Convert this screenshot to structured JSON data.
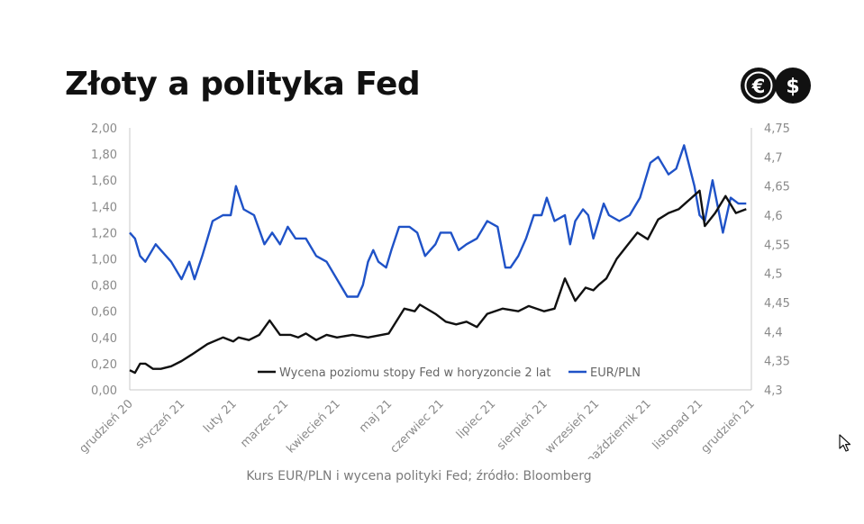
{
  "title": "Złoty a polityka Fed",
  "source": "Kurs EUR/PLN i wycena polityki Fed; źródło: Bloomberg",
  "logo": {
    "left_symbol": "€",
    "right_symbol": "$",
    "icon": "currency-euro-dollar-icon"
  },
  "colors": {
    "fed": "#111111",
    "eurpln": "#1f52c7",
    "axis": "#c8c8c8",
    "tick": "#8a8a8a"
  },
  "chart_data": {
    "type": "line",
    "x_ticks": [
      "grudzień 20",
      "styczeń 21",
      "luty 21",
      "marzec 21",
      "kwiecień 21",
      "maj 21",
      "czerwiec 21",
      "lipiec 21",
      "sierpień 21",
      "wrzesień 21",
      "październik 21",
      "listopad 21",
      "grudzień 21"
    ],
    "y_left": {
      "min": 0,
      "max": 2,
      "ticks": [
        "0,00",
        "0,20",
        "0,40",
        "0,60",
        "0,80",
        "1,00",
        "1,20",
        "1,40",
        "1,60",
        "1,80",
        "2,00"
      ]
    },
    "y_right": {
      "min": 4.3,
      "max": 4.75,
      "ticks": [
        "4,3",
        "4,35",
        "4,4",
        "4,45",
        "4,5",
        "4,55",
        "4,6",
        "4,65",
        "4,7",
        "4,75"
      ]
    },
    "legend_position": "bottom-inside",
    "series": [
      {
        "name": "Wycena poziomu stopy Fed w horyzoncie 2 lat",
        "axis": "left",
        "x": [
          0,
          0.1,
          0.2,
          0.3,
          0.45,
          0.6,
          0.8,
          1.0,
          1.2,
          1.5,
          1.8,
          2.0,
          2.1,
          2.3,
          2.5,
          2.7,
          2.9,
          3.1,
          3.25,
          3.4,
          3.6,
          3.8,
          4.0,
          4.3,
          4.6,
          5.0,
          5.3,
          5.5,
          5.6,
          5.9,
          6.1,
          6.3,
          6.5,
          6.7,
          6.9,
          7.2,
          7.5,
          7.7,
          8.0,
          8.2,
          8.4,
          8.6,
          8.8,
          8.95,
          9.05,
          9.2,
          9.4,
          9.6,
          9.8,
          10.0,
          10.2,
          10.4,
          10.6,
          10.8,
          11.0,
          11.1,
          11.3,
          11.5,
          11.7,
          11.9
        ],
        "y": [
          0.15,
          0.13,
          0.2,
          0.2,
          0.16,
          0.16,
          0.18,
          0.22,
          0.27,
          0.35,
          0.4,
          0.37,
          0.4,
          0.38,
          0.42,
          0.53,
          0.42,
          0.42,
          0.4,
          0.43,
          0.38,
          0.42,
          0.4,
          0.42,
          0.4,
          0.43,
          0.62,
          0.6,
          0.65,
          0.58,
          0.52,
          0.5,
          0.52,
          0.48,
          0.58,
          0.62,
          0.6,
          0.64,
          0.6,
          0.62,
          0.85,
          0.68,
          0.78,
          0.76,
          0.8,
          0.85,
          1.0,
          1.1,
          1.2,
          1.15,
          1.3,
          1.35,
          1.38,
          1.45,
          1.52,
          1.25,
          1.35,
          1.48,
          1.35,
          1.38
        ]
      },
      {
        "name": "EUR/PLN",
        "axis": "right",
        "x": [
          0,
          0.1,
          0.2,
          0.3,
          0.5,
          0.6,
          0.8,
          1.0,
          1.15,
          1.25,
          1.4,
          1.5,
          1.6,
          1.8,
          1.95,
          2.05,
          2.2,
          2.4,
          2.6,
          2.75,
          2.9,
          3.05,
          3.2,
          3.4,
          3.6,
          3.8,
          4.0,
          4.2,
          4.4,
          4.5,
          4.6,
          4.7,
          4.8,
          4.95,
          5.05,
          5.2,
          5.4,
          5.55,
          5.7,
          5.9,
          6.0,
          6.2,
          6.35,
          6.5,
          6.7,
          6.9,
          7.1,
          7.25,
          7.35,
          7.5,
          7.65,
          7.8,
          7.95,
          8.05,
          8.2,
          8.4,
          8.5,
          8.6,
          8.75,
          8.85,
          8.95,
          9.05,
          9.15,
          9.25,
          9.45,
          9.65,
          9.85,
          10.05,
          10.2,
          10.4,
          10.55,
          10.7,
          10.9,
          11.0,
          11.1,
          11.25,
          11.45,
          11.6,
          11.75,
          11.9
        ],
        "y": [
          4.57,
          4.56,
          4.53,
          4.52,
          4.55,
          4.54,
          4.52,
          4.49,
          4.52,
          4.49,
          4.53,
          4.56,
          4.59,
          4.6,
          4.6,
          4.65,
          4.61,
          4.6,
          4.55,
          4.57,
          4.55,
          4.58,
          4.56,
          4.56,
          4.53,
          4.52,
          4.49,
          4.46,
          4.46,
          4.48,
          4.52,
          4.54,
          4.52,
          4.51,
          4.54,
          4.58,
          4.58,
          4.57,
          4.53,
          4.55,
          4.57,
          4.57,
          4.54,
          4.55,
          4.56,
          4.59,
          4.58,
          4.51,
          4.51,
          4.53,
          4.56,
          4.6,
          4.6,
          4.63,
          4.59,
          4.6,
          4.55,
          4.59,
          4.61,
          4.6,
          4.56,
          4.59,
          4.62,
          4.6,
          4.59,
          4.6,
          4.63,
          4.69,
          4.7,
          4.67,
          4.68,
          4.72,
          4.65,
          4.6,
          4.59,
          4.66,
          4.57,
          4.63,
          4.62,
          4.62
        ]
      }
    ]
  }
}
